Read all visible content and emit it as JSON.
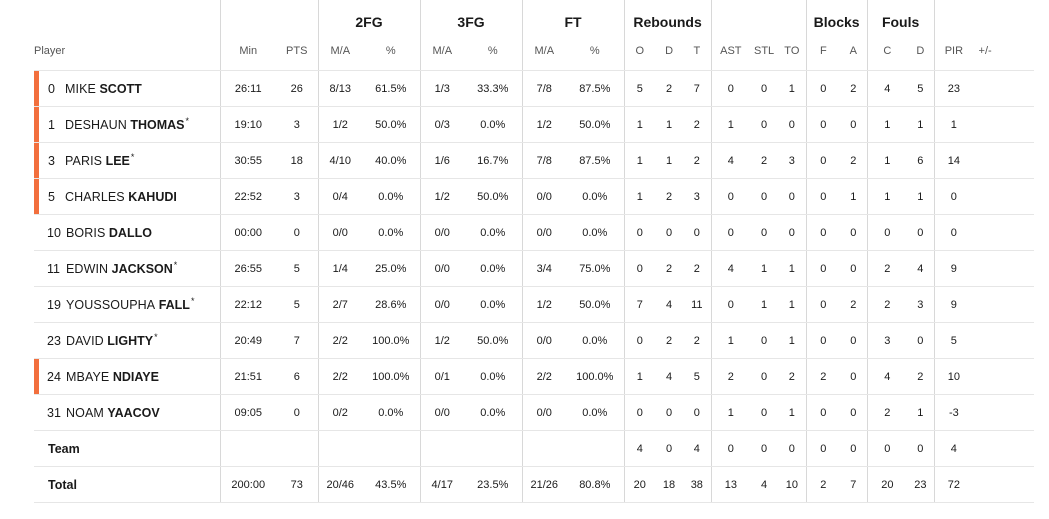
{
  "groups": {
    "twofg": "2FG",
    "threefg": "3FG",
    "ft": "FT",
    "rebounds": "Rebounds",
    "blocks": "Blocks",
    "fouls": "Fouls"
  },
  "columns": {
    "player": "Player",
    "min": "Min",
    "pts": "PTS",
    "twofg_ma": "M/A",
    "twofg_pct": "%",
    "threefg_ma": "M/A",
    "threefg_pct": "%",
    "ft_ma": "M/A",
    "ft_pct": "%",
    "reb_o": "O",
    "reb_d": "D",
    "reb_t": "T",
    "ast": "AST",
    "stl": "STL",
    "to": "TO",
    "blk_f": "F",
    "blk_a": "A",
    "foul_c": "C",
    "foul_d": "D",
    "pir": "PIR",
    "pm": "+/-"
  },
  "accent_color": "#f26f3d",
  "players": [
    {
      "num": "0",
      "first": "MIKE",
      "last": "SCOTT",
      "star": "",
      "starter": true,
      "min": "26:11",
      "pts": "26",
      "fg2": "8/13",
      "fg2p": "61.5%",
      "fg3": "1/3",
      "fg3p": "33.3%",
      "ft": "7/8",
      "ftp": "87.5%",
      "o": "5",
      "d": "2",
      "t": "7",
      "ast": "0",
      "stl": "0",
      "to": "1",
      "bf": "0",
      "ba": "2",
      "fc": "4",
      "fd": "5",
      "pir": "23",
      "pm": ""
    },
    {
      "num": "1",
      "first": "DESHAUN",
      "last": "THOMAS",
      "star": "*",
      "starter": true,
      "min": "19:10",
      "pts": "3",
      "fg2": "1/2",
      "fg2p": "50.0%",
      "fg3": "0/3",
      "fg3p": "0.0%",
      "ft": "1/2",
      "ftp": "50.0%",
      "o": "1",
      "d": "1",
      "t": "2",
      "ast": "1",
      "stl": "0",
      "to": "0",
      "bf": "0",
      "ba": "0",
      "fc": "1",
      "fd": "1",
      "pir": "1",
      "pm": ""
    },
    {
      "num": "3",
      "first": "PARIS",
      "last": "LEE",
      "star": "*",
      "starter": true,
      "min": "30:55",
      "pts": "18",
      "fg2": "4/10",
      "fg2p": "40.0%",
      "fg3": "1/6",
      "fg3p": "16.7%",
      "ft": "7/8",
      "ftp": "87.5%",
      "o": "1",
      "d": "1",
      "t": "2",
      "ast": "4",
      "stl": "2",
      "to": "3",
      "bf": "0",
      "ba": "2",
      "fc": "1",
      "fd": "6",
      "pir": "14",
      "pm": ""
    },
    {
      "num": "5",
      "first": "CHARLES",
      "last": "KAHUDI",
      "star": "",
      "starter": true,
      "min": "22:52",
      "pts": "3",
      "fg2": "0/4",
      "fg2p": "0.0%",
      "fg3": "1/2",
      "fg3p": "50.0%",
      "ft": "0/0",
      "ftp": "0.0%",
      "o": "1",
      "d": "2",
      "t": "3",
      "ast": "0",
      "stl": "0",
      "to": "0",
      "bf": "0",
      "ba": "1",
      "fc": "1",
      "fd": "1",
      "pir": "0",
      "pm": ""
    },
    {
      "num": "10",
      "first": "BORIS",
      "last": "DALLO",
      "star": "",
      "starter": false,
      "min": "00:00",
      "pts": "0",
      "fg2": "0/0",
      "fg2p": "0.0%",
      "fg3": "0/0",
      "fg3p": "0.0%",
      "ft": "0/0",
      "ftp": "0.0%",
      "o": "0",
      "d": "0",
      "t": "0",
      "ast": "0",
      "stl": "0",
      "to": "0",
      "bf": "0",
      "ba": "0",
      "fc": "0",
      "fd": "0",
      "pir": "0",
      "pm": ""
    },
    {
      "num": "11",
      "first": "EDWIN",
      "last": "JACKSON",
      "star": "*",
      "starter": false,
      "min": "26:55",
      "pts": "5",
      "fg2": "1/4",
      "fg2p": "25.0%",
      "fg3": "0/0",
      "fg3p": "0.0%",
      "ft": "3/4",
      "ftp": "75.0%",
      "o": "0",
      "d": "2",
      "t": "2",
      "ast": "4",
      "stl": "1",
      "to": "1",
      "bf": "0",
      "ba": "0",
      "fc": "2",
      "fd": "4",
      "pir": "9",
      "pm": ""
    },
    {
      "num": "19",
      "first": "YOUSSOUPHA",
      "last": "FALL",
      "star": "*",
      "starter": false,
      "min": "22:12",
      "pts": "5",
      "fg2": "2/7",
      "fg2p": "28.6%",
      "fg3": "0/0",
      "fg3p": "0.0%",
      "ft": "1/2",
      "ftp": "50.0%",
      "o": "7",
      "d": "4",
      "t": "11",
      "ast": "0",
      "stl": "1",
      "to": "1",
      "bf": "0",
      "ba": "2",
      "fc": "2",
      "fd": "3",
      "pir": "9",
      "pm": ""
    },
    {
      "num": "23",
      "first": "DAVID",
      "last": "LIGHTY",
      "star": "*",
      "starter": false,
      "min": "20:49",
      "pts": "7",
      "fg2": "2/2",
      "fg2p": "100.0%",
      "fg3": "1/2",
      "fg3p": "50.0%",
      "ft": "0/0",
      "ftp": "0.0%",
      "o": "0",
      "d": "2",
      "t": "2",
      "ast": "1",
      "stl": "0",
      "to": "1",
      "bf": "0",
      "ba": "0",
      "fc": "3",
      "fd": "0",
      "pir": "5",
      "pm": ""
    },
    {
      "num": "24",
      "first": "MBAYE",
      "last": "NDIAYE",
      "star": "",
      "starter": true,
      "min": "21:51",
      "pts": "6",
      "fg2": "2/2",
      "fg2p": "100.0%",
      "fg3": "0/1",
      "fg3p": "0.0%",
      "ft": "2/2",
      "ftp": "100.0%",
      "o": "1",
      "d": "4",
      "t": "5",
      "ast": "2",
      "stl": "0",
      "to": "2",
      "bf": "2",
      "ba": "0",
      "fc": "4",
      "fd": "2",
      "pir": "10",
      "pm": ""
    },
    {
      "num": "31",
      "first": "NOAM",
      "last": "YAACOV",
      "star": "",
      "starter": false,
      "min": "09:05",
      "pts": "0",
      "fg2": "0/2",
      "fg2p": "0.0%",
      "fg3": "0/0",
      "fg3p": "0.0%",
      "ft": "0/0",
      "ftp": "0.0%",
      "o": "0",
      "d": "0",
      "t": "0",
      "ast": "1",
      "stl": "0",
      "to": "1",
      "bf": "0",
      "ba": "0",
      "fc": "2",
      "fd": "1",
      "pir": "-3",
      "pm": ""
    }
  ],
  "team": {
    "label": "Team",
    "min": "",
    "pts": "",
    "fg2": "",
    "fg2p": "",
    "fg3": "",
    "fg3p": "",
    "ft": "",
    "ftp": "",
    "o": "4",
    "d": "0",
    "t": "4",
    "ast": "0",
    "stl": "0",
    "to": "0",
    "bf": "0",
    "ba": "0",
    "fc": "0",
    "fd": "0",
    "pir": "4",
    "pm": ""
  },
  "total": {
    "label": "Total",
    "min": "200:00",
    "pts": "73",
    "fg2": "20/46",
    "fg2p": "43.5%",
    "fg3": "4/17",
    "fg3p": "23.5%",
    "ft": "21/26",
    "ftp": "80.8%",
    "o": "20",
    "d": "18",
    "t": "38",
    "ast": "13",
    "stl": "4",
    "to": "10",
    "bf": "2",
    "ba": "7",
    "fc": "20",
    "fd": "23",
    "pir": "72",
    "pm": ""
  }
}
